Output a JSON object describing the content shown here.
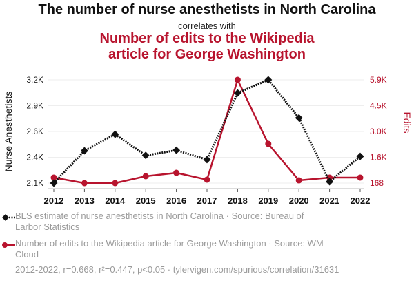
{
  "header": {
    "title": "The number of nurse anesthetists in North Carolina",
    "subtitle": "correlates with",
    "title2_line1": "Number of edits to the Wikipedia",
    "title2_line2": "article for George Washington"
  },
  "colors": {
    "series1": "#111111",
    "series2": "#b8142e",
    "grid": "#eeeeee",
    "muted_text": "#9a9a9a"
  },
  "chart_data": {
    "type": "line",
    "title": "The number of nurse anesthetists in North Carolina correlates with Number of edits to the Wikipedia article for George Washington",
    "x": [
      "2012",
      "2013",
      "2014",
      "2015",
      "2016",
      "2017",
      "2018",
      "2019",
      "2020",
      "2021",
      "2022"
    ],
    "xlabel": "",
    "y_left": {
      "label": "Nurse Anesthetists",
      "range": [
        2100,
        3200
      ],
      "ticks": [
        2100,
        2375,
        2650,
        2925,
        3200
      ],
      "tick_labels": [
        "2.1K",
        "2.4K",
        "2.6K",
        "2.9K",
        "3.2K"
      ]
    },
    "y_right": {
      "label": "Edits",
      "range": [
        168,
        5900
      ],
      "ticks": [
        168,
        1601,
        3034,
        4467,
        5900
      ],
      "tick_labels": [
        "168",
        "1.6K",
        "3.0K",
        "4.5K",
        "5.9K"
      ]
    },
    "grid": true,
    "legend_position": "bottom-left",
    "series": [
      {
        "name": "BLS estimate of nurse anesthetists in North Carolina · Source: Bureau of Larbor Statistics",
        "axis": "left",
        "style": "dotted",
        "marker": "diamond",
        "values": [
          2100,
          2445,
          2620,
          2395,
          2450,
          2350,
          3060,
          3200,
          2795,
          2115,
          2385
        ]
      },
      {
        "name": "Number of edits to the Wikipedia article for George Washington · Source: WM Cloud",
        "axis": "right",
        "style": "solid",
        "marker": "circle",
        "values": [
          475,
          168,
          168,
          550,
          740,
          360,
          5900,
          2345,
          320,
          475,
          475
        ]
      }
    ]
  },
  "legend": {
    "item1_line1": "BLS estimate of nurse anesthetists in North Carolina · Source: Bureau of",
    "item1_line2": "Larbor Statistics",
    "item2_line1": "Number of edits to the Wikipedia article for George Washington · Source: WM",
    "item2_line2": "Cloud"
  },
  "footer": {
    "text": "2012-2022, r=0.668, r²=0.447, p<0.05 · tylervigen.com/spurious/correlation/31631"
  }
}
